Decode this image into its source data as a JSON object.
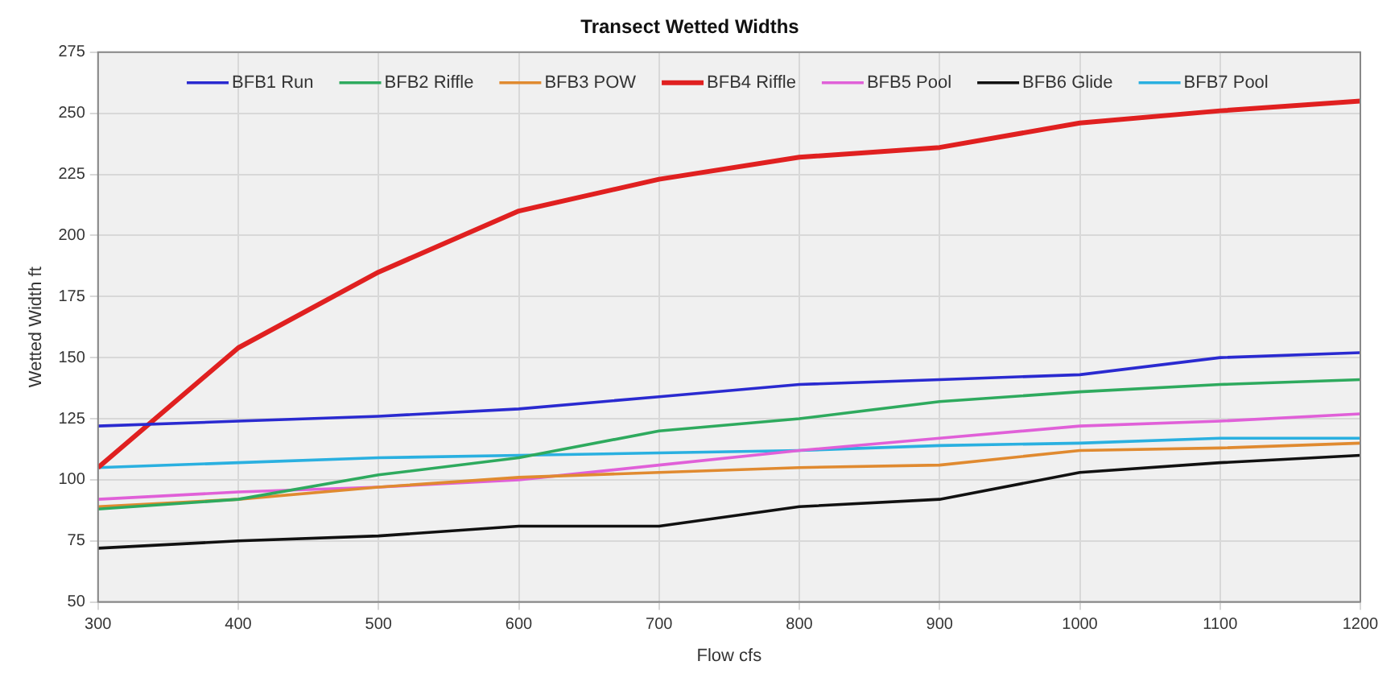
{
  "chart_data": {
    "type": "line",
    "title": "Transect Wetted Widths",
    "xlabel": "Flow cfs",
    "ylabel": "Wetted Width ft",
    "x": [
      300,
      400,
      500,
      600,
      700,
      800,
      900,
      1000,
      1100,
      1200
    ],
    "series": [
      {
        "name": "BFB1 Run",
        "color": "#2a2ad0",
        "values": [
          122,
          124,
          126,
          129,
          134,
          139,
          141,
          143,
          150,
          152
        ]
      },
      {
        "name": "BFB2 Riffle",
        "color": "#2eaa5e",
        "values": [
          88,
          92,
          102,
          109,
          120,
          125,
          132,
          136,
          139,
          141
        ]
      },
      {
        "name": "BFB3 POW",
        "color": "#e08a30",
        "values": [
          89,
          92,
          97,
          101,
          103,
          105,
          106,
          112,
          113,
          115
        ]
      },
      {
        "name": "BFB4 Riffle",
        "color": "#e02020",
        "values": [
          105,
          154,
          185,
          210,
          223,
          232,
          236,
          246,
          251,
          255
        ]
      },
      {
        "name": "BFB5 Pool",
        "color": "#e060d8",
        "values": [
          92,
          95,
          97,
          100,
          106,
          112,
          117,
          122,
          124,
          127
        ]
      },
      {
        "name": "BFB6 Glide",
        "color": "#111111",
        "values": [
          72,
          75,
          77,
          81,
          81,
          89,
          92,
          103,
          107,
          110
        ]
      },
      {
        "name": "BFB7 Pool",
        "color": "#2ab0e0",
        "values": [
          105,
          107,
          109,
          110,
          111,
          112,
          114,
          115,
          117,
          117
        ]
      }
    ],
    "xlim": [
      300,
      1200
    ],
    "xticks": [
      300,
      400,
      500,
      600,
      700,
      800,
      900,
      1000,
      1100,
      1200
    ],
    "ylim": [
      50,
      275
    ],
    "yticks": [
      50,
      75,
      100,
      125,
      150,
      175,
      200,
      225,
      250,
      275
    ],
    "grid": true,
    "legend": "top",
    "marker": "none",
    "line_style": "solid"
  }
}
